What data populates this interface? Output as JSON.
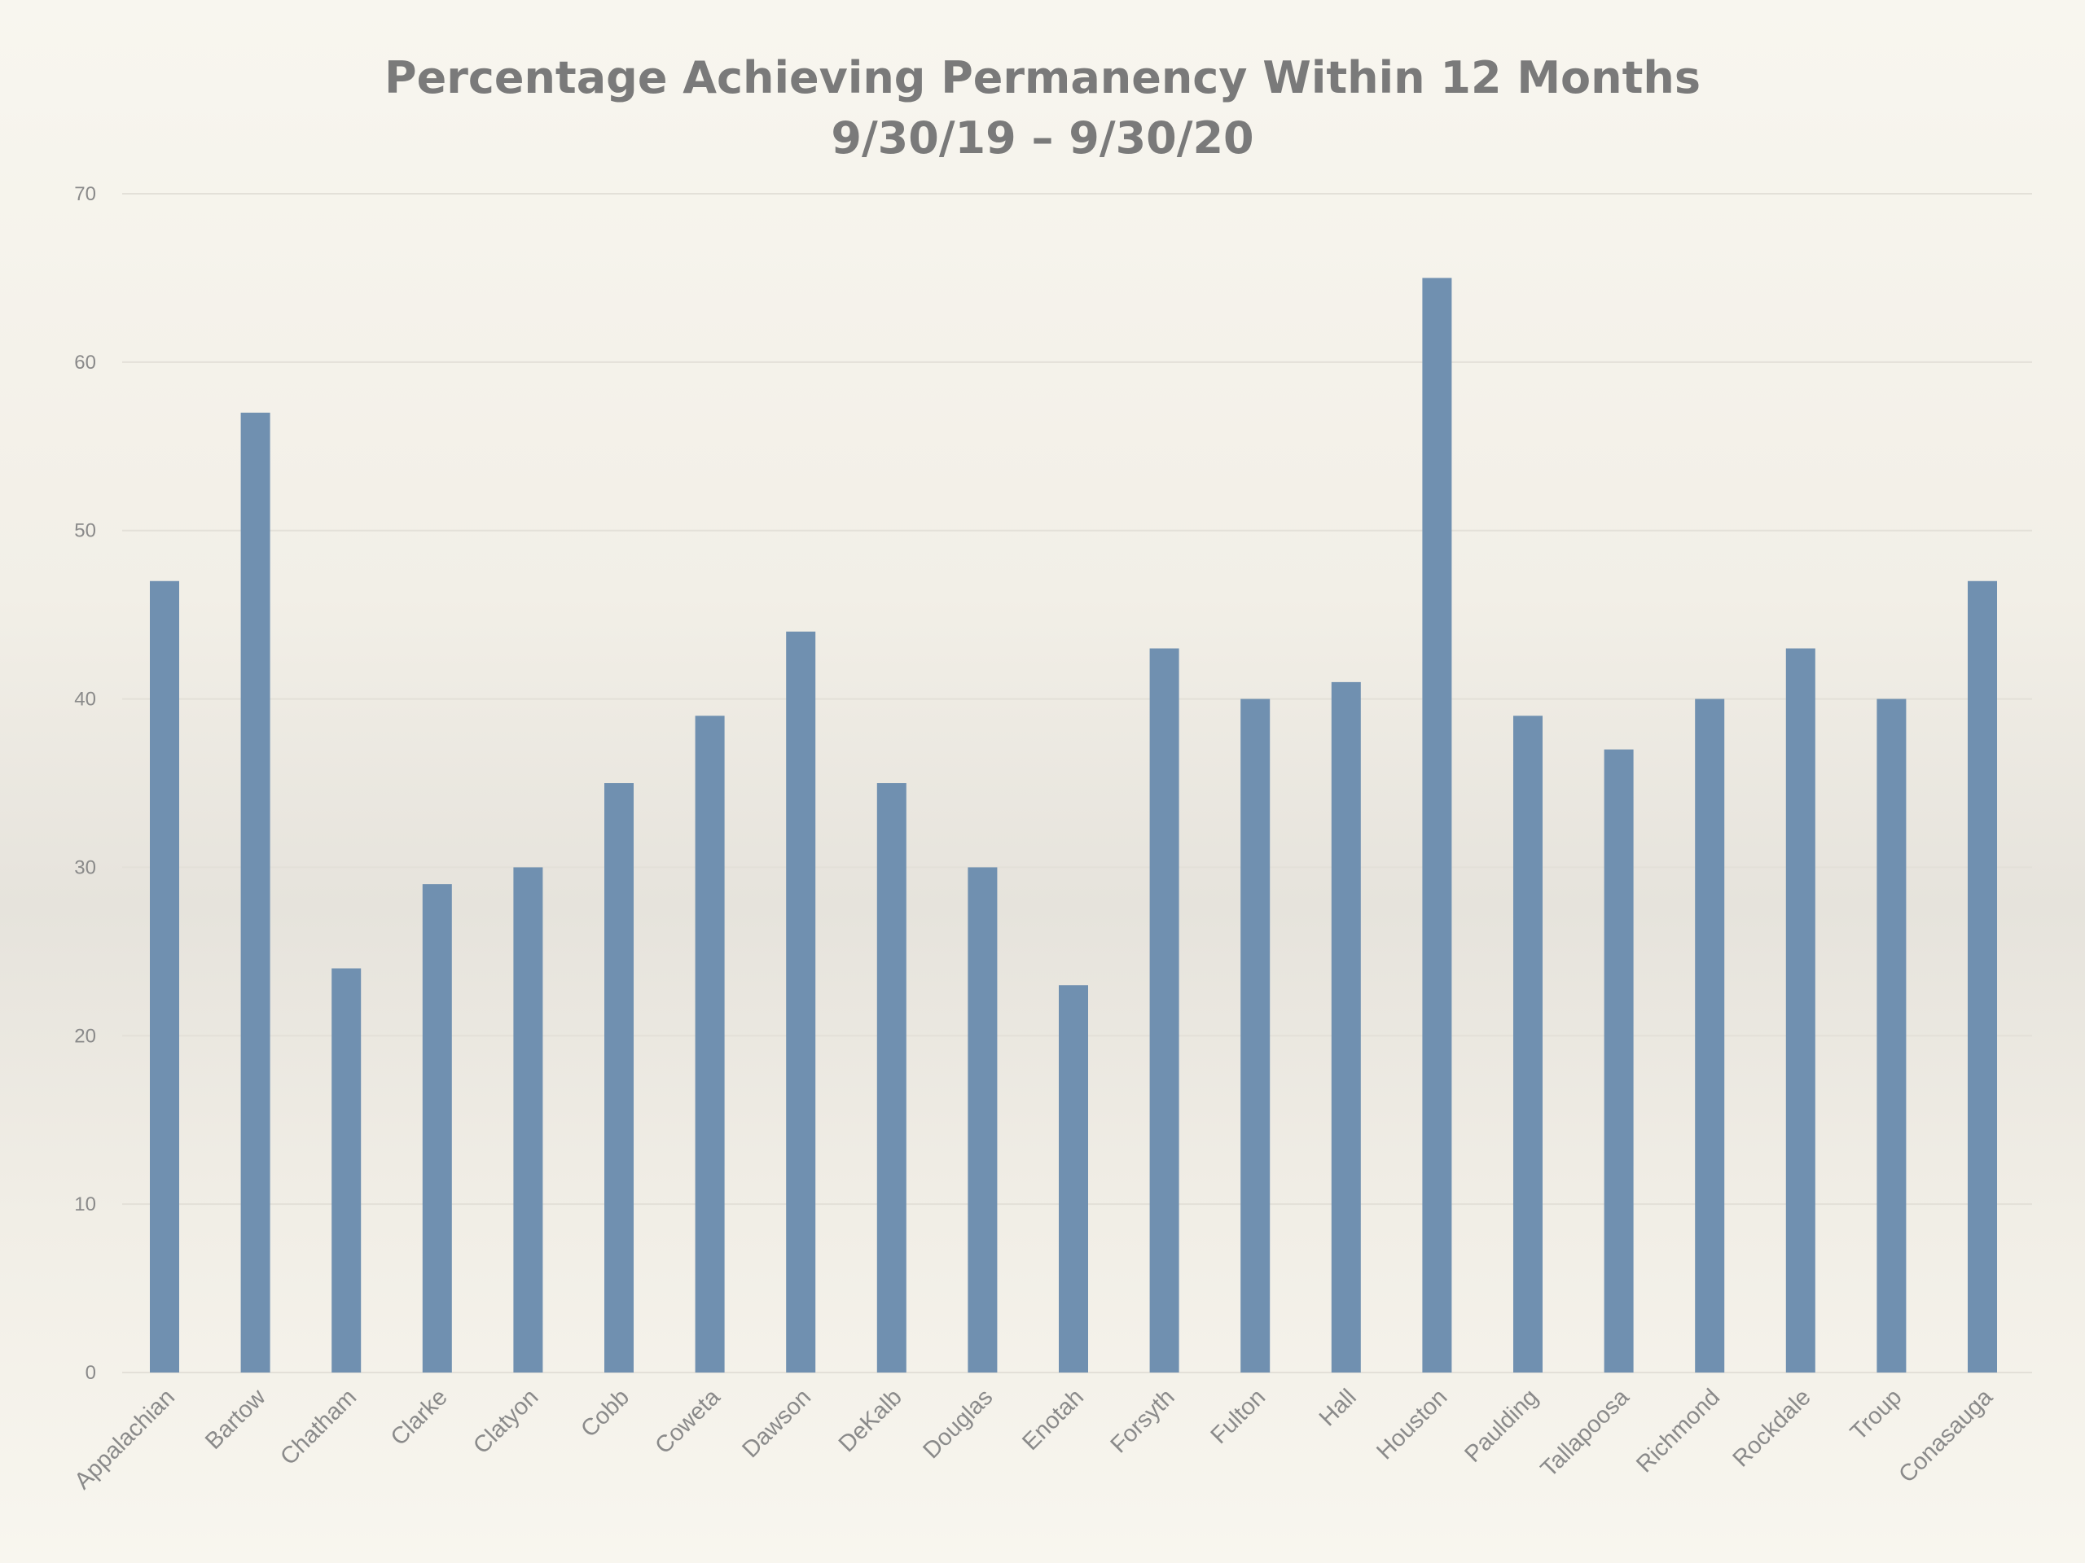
{
  "chart_data": {
    "type": "bar",
    "title": "Percentage Achieving Permanency Within 12 Months",
    "subtitle": "9/30/19 – 9/30/20",
    "xlabel": "",
    "ylabel": "",
    "ylim": [
      0,
      70
    ],
    "yticks": [
      0,
      10,
      20,
      30,
      40,
      50,
      60,
      70
    ],
    "grid": true,
    "legend": "none",
    "bar_color": "#7090b0",
    "categories": [
      "Appalachian",
      "Bartow",
      "Chatham",
      "Clarke",
      "Clatyon",
      "Cobb",
      "Coweta",
      "Dawson",
      "DeKalb",
      "Douglas",
      "Enotah",
      "Forsyth",
      "Fulton",
      "Hall",
      "Houston",
      "Paulding",
      "Tallapoosa",
      "Richmond",
      "Rockdale",
      "Troup",
      "Conasauga"
    ],
    "values": [
      47,
      57,
      24,
      29,
      30,
      35,
      39,
      44,
      35,
      30,
      23,
      43,
      40,
      41,
      65,
      39,
      37,
      40,
      43,
      40,
      47
    ]
  }
}
